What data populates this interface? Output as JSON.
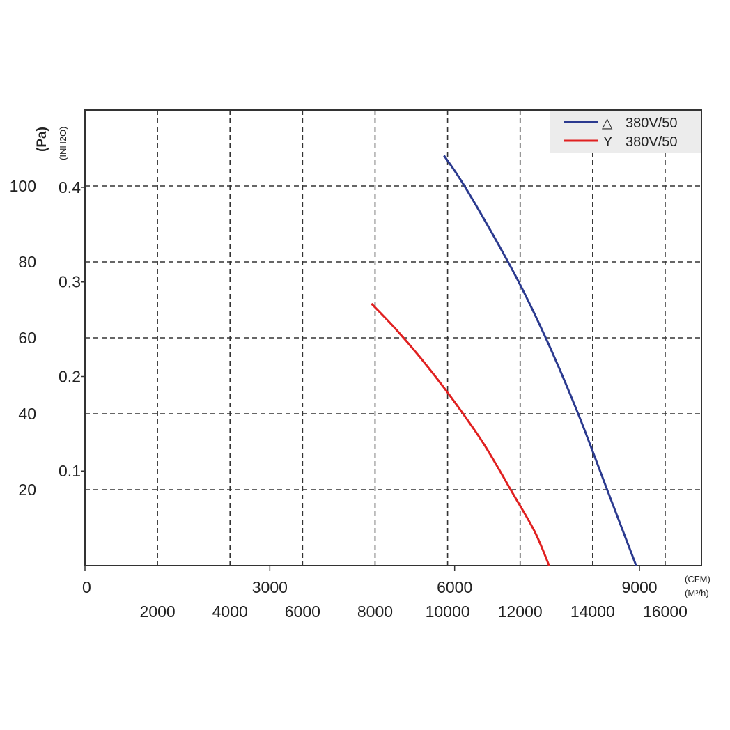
{
  "chart_data": {
    "type": "line",
    "title": "",
    "xlabel_unit_primary": "(CFM)",
    "xlabel_unit_secondary": "(M³/h)",
    "ylabel_unit_primary": "(Pa)",
    "ylabel_unit_secondary": "(INH2O)",
    "x_range_m3h": [
      0,
      17000
    ],
    "y_range_pa": [
      0,
      120
    ],
    "grid": true,
    "grid_style": "dashed",
    "legend_position": "top-right",
    "ticks": {
      "cfm": [
        "0",
        "3000",
        "6000",
        "9000"
      ],
      "m3h": [
        "2000",
        "4000",
        "6000",
        "8000",
        "10000",
        "12000",
        "14000",
        "16000"
      ],
      "pa": [
        "20",
        "40",
        "60",
        "80",
        "100"
      ],
      "inh2o": [
        "0.1",
        "0.2",
        "0.3",
        "0.4"
      ]
    },
    "series": [
      {
        "name": "380V/50",
        "symbol": "△",
        "color": "#2b3a8f",
        "points": [
          [
            9900,
            108
          ],
          [
            10400,
            101
          ],
          [
            11200,
            88
          ],
          [
            12000,
            74
          ],
          [
            12800,
            58
          ],
          [
            13600,
            40
          ],
          [
            14400,
            20
          ],
          [
            15200,
            0
          ]
        ]
      },
      {
        "name": "380V/50",
        "symbol": "Y",
        "color": "#e02020",
        "points": [
          [
            7900,
            69
          ],
          [
            8600,
            62
          ],
          [
            9400,
            53
          ],
          [
            10200,
            43
          ],
          [
            11000,
            32
          ],
          [
            11800,
            19
          ],
          [
            12400,
            9
          ],
          [
            12800,
            0
          ]
        ]
      }
    ]
  }
}
